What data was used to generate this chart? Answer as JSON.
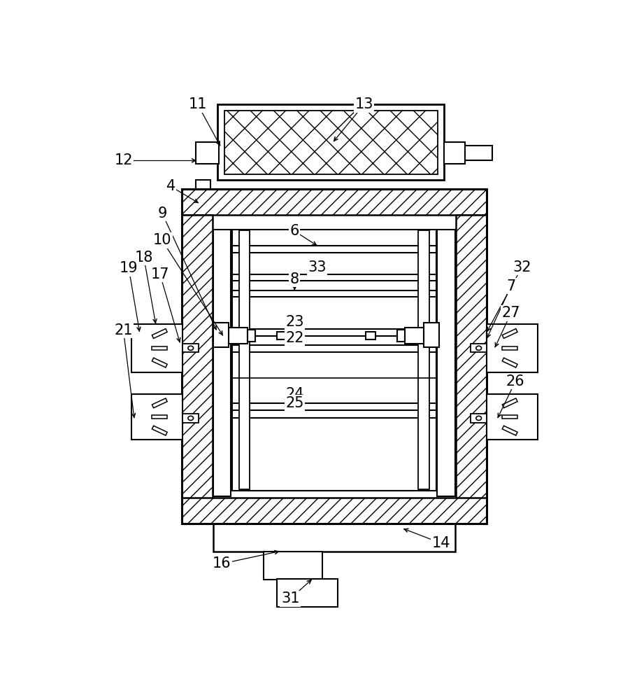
{
  "bg": "#ffffff",
  "lc": "#000000",
  "figsize": [
    9.01,
    10.0
  ],
  "dpi": 100,
  "labels": [
    "4",
    "6",
    "7",
    "8",
    "9",
    "10",
    "11",
    "12",
    "13",
    "14",
    "16",
    "17",
    "18",
    "19",
    "21",
    "22",
    "23",
    "24",
    "25",
    "26",
    "27",
    "31",
    "32",
    "33"
  ]
}
